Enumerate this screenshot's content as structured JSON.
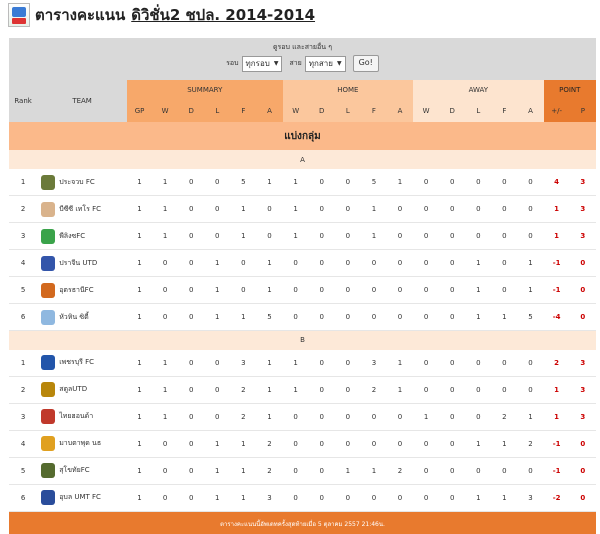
{
  "header": {
    "title_main": "ตารางคะแนน",
    "title_link": "ดิวิชั่น2 ชปล. 2014-2014"
  },
  "filter": {
    "caption": "ดูรอบ และสายอื่น ๆ",
    "round_label": "รอบ",
    "round_value": "ทุกรอบ",
    "group_label": "สาย",
    "group_value": "ทุกสาย",
    "go_label": "Go!"
  },
  "table": {
    "col_rank": "Rank",
    "col_team": "TEAM",
    "col_summary": "SUMMARY",
    "col_home": "HOME",
    "col_away": "AWAY",
    "col_point": "POINT",
    "sub": [
      "GP",
      "W",
      "D",
      "L",
      "F",
      "A",
      "W",
      "D",
      "L",
      "F",
      "A",
      "W",
      "D",
      "L",
      "F",
      "A",
      "+/-",
      "P"
    ],
    "stage_title": "แบ่งกลุ่ม",
    "groups": [
      {
        "name": "A",
        "rows": [
          {
            "rank": "1",
            "team": "ประจวบ FC",
            "crest": "#6b7a3a",
            "stats": [
              "1",
              "1",
              "0",
              "0",
              "5",
              "1",
              "1",
              "0",
              "0",
              "5",
              "1",
              "0",
              "0",
              "0",
              "0",
              "0",
              "4",
              "3"
            ]
          },
          {
            "rank": "2",
            "team": "บีซีซี เทโร FC",
            "crest": "#d9b38c",
            "stats": [
              "1",
              "1",
              "0",
              "0",
              "1",
              "0",
              "1",
              "0",
              "0",
              "1",
              "0",
              "0",
              "0",
              "0",
              "0",
              "0",
              "1",
              "3"
            ]
          },
          {
            "rank": "3",
            "team": "พีลิงซFC",
            "crest": "#3aa34a",
            "stats": [
              "1",
              "1",
              "0",
              "0",
              "1",
              "0",
              "1",
              "0",
              "0",
              "1",
              "0",
              "0",
              "0",
              "0",
              "0",
              "0",
              "1",
              "3"
            ]
          },
          {
            "rank": "4",
            "team": "ปราจีน UTD",
            "crest": "#3355aa",
            "stats": [
              "1",
              "0",
              "0",
              "1",
              "0",
              "1",
              "0",
              "0",
              "0",
              "0",
              "0",
              "0",
              "0",
              "1",
              "0",
              "1",
              "-1",
              "0"
            ]
          },
          {
            "rank": "5",
            "team": "อุตรธานีFC",
            "crest": "#d2691e",
            "stats": [
              "1",
              "0",
              "0",
              "1",
              "0",
              "1",
              "0",
              "0",
              "0",
              "0",
              "0",
              "0",
              "0",
              "1",
              "0",
              "1",
              "-1",
              "0"
            ]
          },
          {
            "rank": "6",
            "team": "หัวหิน ซิตี้",
            "crest": "#8fb8e0",
            "stats": [
              "1",
              "0",
              "0",
              "1",
              "1",
              "5",
              "0",
              "0",
              "0",
              "0",
              "0",
              "0",
              "0",
              "1",
              "1",
              "5",
              "-4",
              "0"
            ]
          }
        ]
      },
      {
        "name": "B",
        "rows": [
          {
            "rank": "1",
            "team": "เพชรบุรี FC",
            "crest": "#2255aa",
            "stats": [
              "1",
              "1",
              "0",
              "0",
              "3",
              "1",
              "1",
              "0",
              "0",
              "3",
              "1",
              "0",
              "0",
              "0",
              "0",
              "0",
              "2",
              "3"
            ]
          },
          {
            "rank": "2",
            "team": "สตูลUTD",
            "crest": "#b8860b",
            "stats": [
              "1",
              "1",
              "0",
              "0",
              "2",
              "1",
              "1",
              "0",
              "0",
              "2",
              "1",
              "0",
              "0",
              "0",
              "0",
              "0",
              "1",
              "3"
            ]
          },
          {
            "rank": "3",
            "team": "ไทยฮอนด้า",
            "crest": "#c0392b",
            "stats": [
              "1",
              "1",
              "0",
              "0",
              "2",
              "1",
              "0",
              "0",
              "0",
              "0",
              "0",
              "1",
              "0",
              "0",
              "2",
              "1",
              "1",
              "3"
            ]
          },
          {
            "rank": "4",
            "team": "มาบตาพุด นธ",
            "crest": "#e0a020",
            "stats": [
              "1",
              "0",
              "0",
              "1",
              "1",
              "2",
              "0",
              "0",
              "0",
              "0",
              "0",
              "0",
              "0",
              "1",
              "1",
              "2",
              "-1",
              "0"
            ]
          },
          {
            "rank": "5",
            "team": "สุโขทัยFC",
            "crest": "#556b2f",
            "stats": [
              "1",
              "0",
              "0",
              "1",
              "1",
              "2",
              "0",
              "0",
              "1",
              "1",
              "2",
              "0",
              "0",
              "0",
              "0",
              "0",
              "-1",
              "0"
            ]
          },
          {
            "rank": "6",
            "team": "อุบล UMT FC",
            "crest": "#2a4d9b",
            "stats": [
              "1",
              "0",
              "0",
              "1",
              "1",
              "3",
              "0",
              "0",
              "0",
              "0",
              "0",
              "0",
              "0",
              "1",
              "1",
              "3",
              "-2",
              "0"
            ]
          }
        ]
      }
    ],
    "footer_note": "ตารางคะแนนนี้อัพเดทครั้งสุดท้ายเมื่อ 5 ตุลาคม 2557 21:46น."
  }
}
